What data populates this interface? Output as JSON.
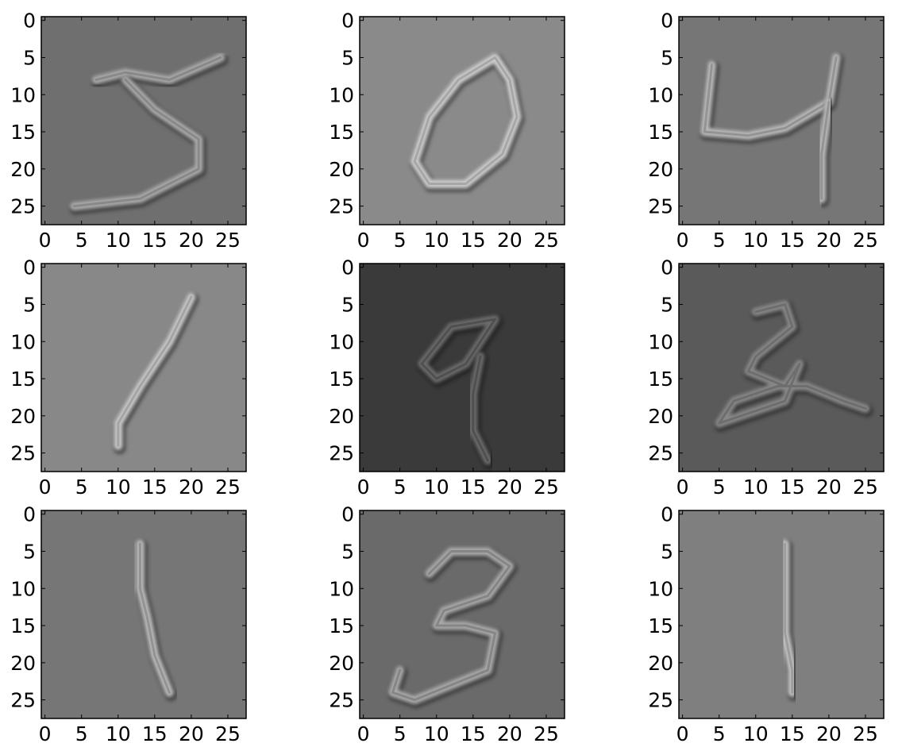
{
  "figure": {
    "rows": 3,
    "cols": 3,
    "image_size": 28,
    "x_ticks": [
      "0",
      "5",
      "10",
      "15",
      "20",
      "25"
    ],
    "y_ticks": [
      "0",
      "5",
      "10",
      "15",
      "20",
      "25"
    ],
    "panels": [
      {
        "digit_shape": "5",
        "background": "#6f6f6f",
        "stroke_color": "#b4b4b4",
        "shadow_color": "#262626",
        "strokes": [
          [
            [
              7,
              8
            ],
            [
              11,
              7
            ],
            [
              17,
              8
            ],
            [
              24,
              5
            ]
          ],
          [
            [
              11,
              8
            ],
            [
              15,
              12
            ],
            [
              21,
              16
            ],
            [
              21,
              20
            ],
            [
              13,
              24
            ],
            [
              4,
              25
            ]
          ]
        ]
      },
      {
        "digit_shape": "0",
        "background": "#8a8a8a",
        "stroke_color": "#d8d8d8",
        "shadow_color": "#2e2e2e",
        "strokes": [
          [
            [
              18,
              5
            ],
            [
              13,
              8
            ],
            [
              9,
              13
            ],
            [
              7,
              19
            ],
            [
              9,
              22
            ],
            [
              14,
              22
            ],
            [
              19,
              18
            ],
            [
              21,
              13
            ],
            [
              20,
              8
            ],
            [
              18,
              5
            ]
          ]
        ]
      },
      {
        "digit_shape": "4",
        "background": "#767676",
        "stroke_color": "#c4c4c4",
        "shadow_color": "#262626",
        "strokes": [
          [
            [
              4,
              6
            ],
            [
              3,
              15
            ],
            [
              9,
              15.5
            ],
            [
              14,
              14.5
            ],
            [
              20,
              11
            ],
            [
              21,
              5
            ]
          ],
          [
            [
              20,
              11
            ],
            [
              19,
              18
            ],
            [
              19,
              24
            ]
          ]
        ]
      },
      {
        "digit_shape": "1",
        "background": "#888888",
        "stroke_color": "#d4d4d4",
        "shadow_color": "#262626",
        "strokes": [
          [
            [
              20,
              4
            ],
            [
              17,
              10
            ],
            [
              13,
              16
            ],
            [
              10,
              21
            ],
            [
              10,
              24
            ]
          ]
        ]
      },
      {
        "digit_shape": "9",
        "background": "#3a3a3a",
        "stroke_color": "#727272",
        "shadow_color": "#141414",
        "strokes": [
          [
            [
              18,
              7
            ],
            [
              12,
              8
            ],
            [
              8,
              13
            ],
            [
              10,
              15
            ],
            [
              14,
              13
            ],
            [
              18,
              7
            ]
          ],
          [
            [
              16,
              12
            ],
            [
              15,
              17
            ],
            [
              15,
              22
            ],
            [
              17,
              26
            ]
          ]
        ]
      },
      {
        "digit_shape": "2",
        "background": "#5a5a5a",
        "stroke_color": "#909090",
        "shadow_color": "#202020",
        "strokes": [
          [
            [
              10,
              6
            ],
            [
              14,
              5
            ],
            [
              15,
              8
            ],
            [
              10,
              12
            ],
            [
              9,
              14
            ],
            [
              14,
              16
            ],
            [
              16,
              13
            ],
            [
              14,
              18
            ],
            [
              8,
              20
            ],
            [
              5,
              21
            ],
            [
              7,
              18
            ],
            [
              13,
              16
            ],
            [
              17,
              16
            ],
            [
              22,
              18
            ],
            [
              25,
              19
            ]
          ]
        ]
      },
      {
        "digit_shape": "1",
        "background": "#767676",
        "stroke_color": "#c4c4c4",
        "shadow_color": "#262626",
        "strokes": [
          [
            [
              13,
              4
            ],
            [
              13,
              10
            ],
            [
              14,
              14
            ],
            [
              15,
              19
            ],
            [
              17,
              24
            ]
          ]
        ]
      },
      {
        "digit_shape": "3",
        "background": "#6a6a6a",
        "stroke_color": "#b4b4b4",
        "shadow_color": "#262626",
        "strokes": [
          [
            [
              9,
              8
            ],
            [
              12,
              5
            ],
            [
              17,
              5
            ],
            [
              20,
              7
            ],
            [
              17,
              11
            ],
            [
              11,
              13
            ],
            [
              10,
              15
            ],
            [
              14,
              15
            ],
            [
              18,
              16
            ],
            [
              17,
              21
            ],
            [
              12,
              23
            ],
            [
              7,
              25
            ],
            [
              4,
              24
            ],
            [
              5,
              21
            ]
          ]
        ]
      },
      {
        "digit_shape": "1",
        "background": "#7f7f7f",
        "stroke_color": "#cecece",
        "shadow_color": "#262626",
        "strokes": [
          [
            [
              14,
              4
            ],
            [
              14,
              10
            ],
            [
              14,
              16
            ],
            [
              15,
              21
            ],
            [
              15,
              24
            ]
          ]
        ]
      }
    ]
  }
}
